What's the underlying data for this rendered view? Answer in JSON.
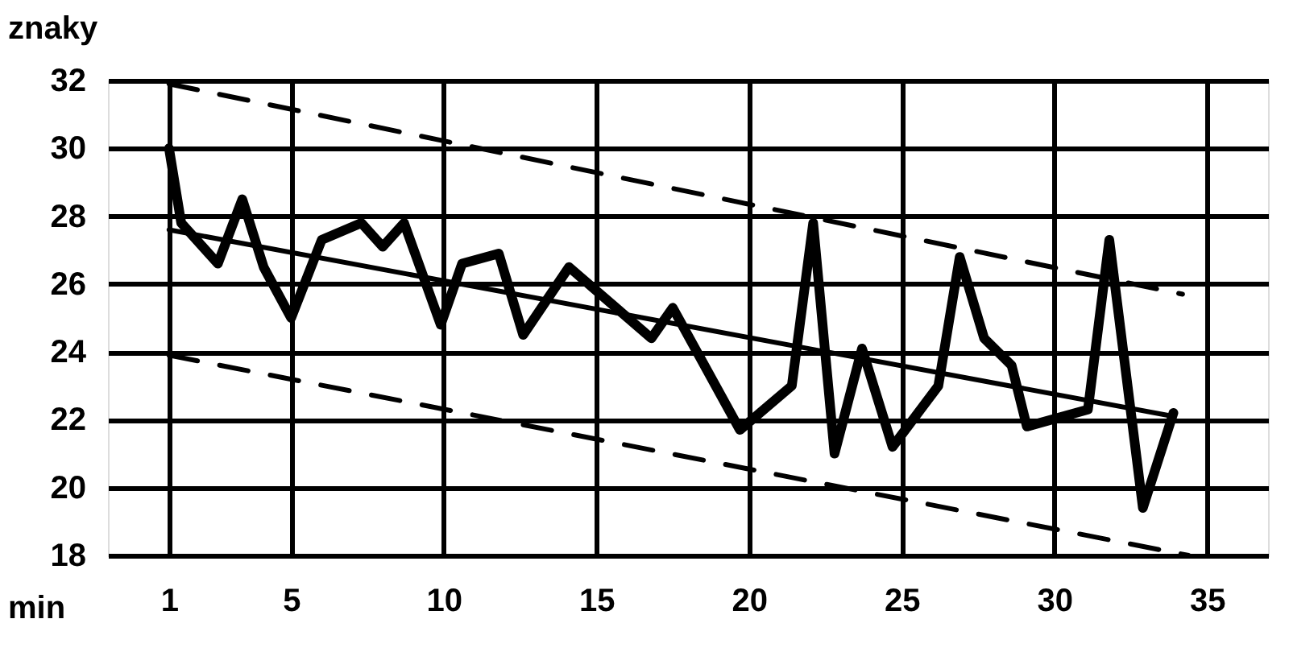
{
  "chart_data": {
    "type": "line",
    "xlabel": "min",
    "ylabel": "znaky",
    "xlim": [
      -1,
      37
    ],
    "ylim": [
      18,
      32
    ],
    "xticks": [
      1,
      5,
      10,
      15,
      20,
      25,
      30,
      35
    ],
    "yticks": [
      18,
      20,
      22,
      24,
      26,
      28,
      30,
      32
    ],
    "grid": true,
    "marker": "none",
    "series": [
      {
        "color": "#000000",
        "line_style": "solid",
        "x": [
          1,
          1.4,
          2.6,
          3.4,
          4.1,
          5,
          6,
          7.3,
          8,
          8.7,
          9.9,
          10.6,
          11.8,
          12.6,
          14.1,
          16.8,
          17.5,
          19.7,
          21.4,
          22.1,
          22.8,
          23.7,
          24.7,
          26.2,
          26.9,
          27.7,
          28.6,
          29.1,
          31.1,
          31.8,
          32.9,
          33.9
        ],
        "values": [
          30,
          27.8,
          26.6,
          28.5,
          26.5,
          25,
          27.3,
          27.8,
          27.1,
          27.8,
          24.8,
          26.6,
          26.9,
          24.5,
          26.5,
          24.4,
          25.3,
          21.7,
          23,
          27.8,
          21,
          24.1,
          21.2,
          23,
          26.8,
          24.4,
          23.6,
          21.8,
          22.3,
          27.3,
          19.4,
          22.2
        ]
      },
      {
        "color": "#000000",
        "line_style": "solid",
        "x": [
          1,
          33.9
        ],
        "values": [
          27.6,
          22.1
        ]
      },
      {
        "color": "#000000",
        "line_style": "dashed",
        "x": [
          1,
          34.2
        ],
        "values": [
          31.9,
          25.7
        ]
      },
      {
        "color": "#000000",
        "line_style": "dashed",
        "x": [
          1,
          34.4
        ],
        "values": [
          23.9,
          18
        ]
      }
    ]
  }
}
